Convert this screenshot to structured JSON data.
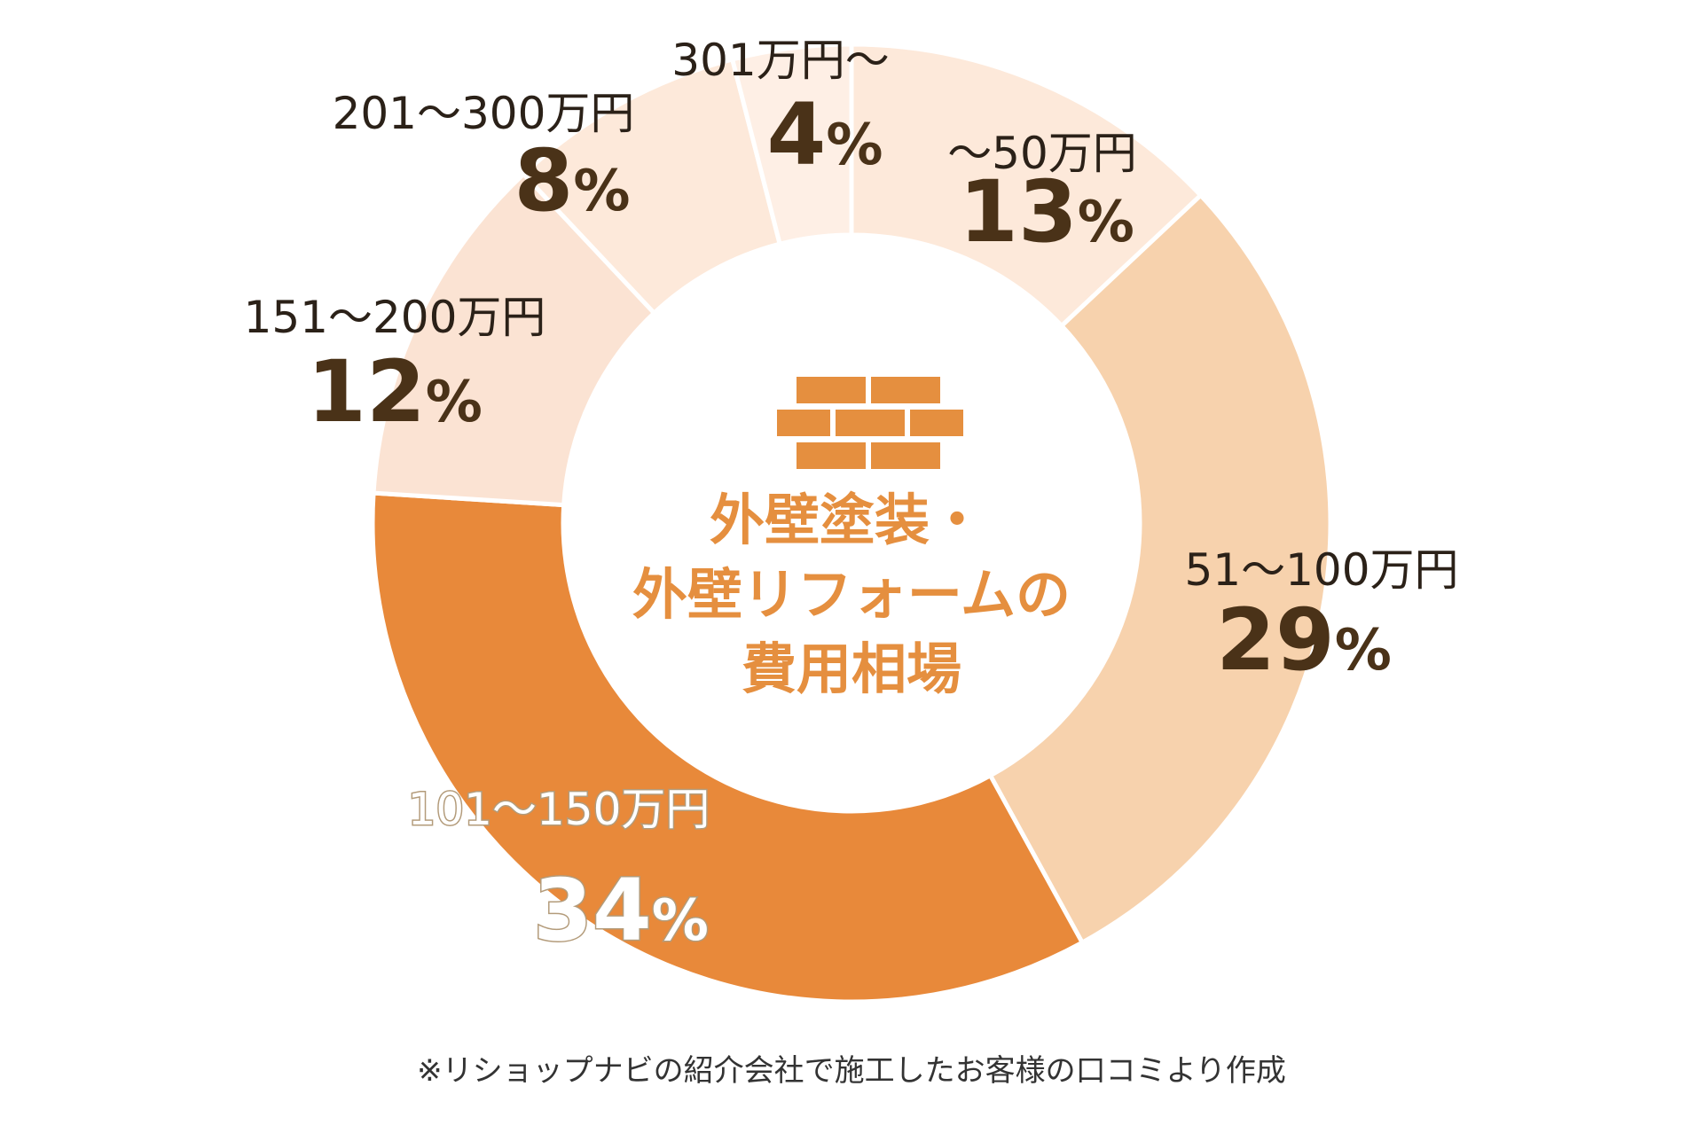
{
  "chart_data": {
    "type": "pie",
    "donut": true,
    "start_angle_deg": 0,
    "direction": "clockwise",
    "center_title": [
      "外壁塗装・",
      "外壁リフォームの",
      "費用相場"
    ],
    "center_icon": "brick-wall-icon",
    "slices": [
      {
        "label": "～50万円",
        "value": 13,
        "percent_text": "13",
        "color": "#fde9da"
      },
      {
        "label": "51～100万円",
        "value": 29,
        "percent_text": "29",
        "color": "#f7d2ad"
      },
      {
        "label": "101～150万円",
        "value": 34,
        "percent_text": "34",
        "color": "#e8893a"
      },
      {
        "label": "151～200万円",
        "value": 12,
        "percent_text": "12",
        "color": "#fbe3d3"
      },
      {
        "label": "201～300万円",
        "value": 8,
        "percent_text": "8",
        "color": "#fde9da"
      },
      {
        "label": "301万円～",
        "value": 4,
        "percent_text": "4",
        "color": "#feefe5"
      }
    ],
    "percent_sign": "%",
    "unit": "%"
  },
  "footnote": "※リショップナビの紹介会社で施工したお客様の口コミより作成"
}
